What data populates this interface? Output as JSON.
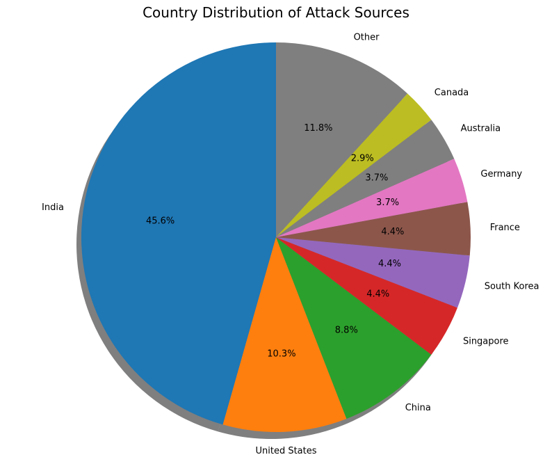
{
  "chart_data": {
    "type": "pie",
    "title": "Country Distribution of Attack Sources",
    "slices": [
      {
        "label": "India",
        "value": 45.6,
        "pct_text": "45.6%",
        "color": "#1f77b4"
      },
      {
        "label": "United States",
        "value": 10.3,
        "pct_text": "10.3%",
        "color": "#ff7f0e"
      },
      {
        "label": "China",
        "value": 8.8,
        "pct_text": "8.8%",
        "color": "#2ca02c"
      },
      {
        "label": "Singapore",
        "value": 4.4,
        "pct_text": "4.4%",
        "color": "#d62728"
      },
      {
        "label": "South Korea",
        "value": 4.4,
        "pct_text": "4.4%",
        "color": "#9467bd"
      },
      {
        "label": "France",
        "value": 4.4,
        "pct_text": "4.4%",
        "color": "#8c564b"
      },
      {
        "label": "Germany",
        "value": 3.7,
        "pct_text": "3.7%",
        "color": "#e377c2"
      },
      {
        "label": "Australia",
        "value": 3.7,
        "pct_text": "3.7%",
        "color": "#7f7f7f"
      },
      {
        "label": "Canada",
        "value": 2.9,
        "pct_text": "2.9%",
        "color": "#bcbd22"
      },
      {
        "label": "Other",
        "value": 11.8,
        "pct_text": "11.8%",
        "color": "#7f7f7f"
      }
    ],
    "start_angle_deg": 90,
    "direction": "counterclockwise",
    "shadow": true
  }
}
